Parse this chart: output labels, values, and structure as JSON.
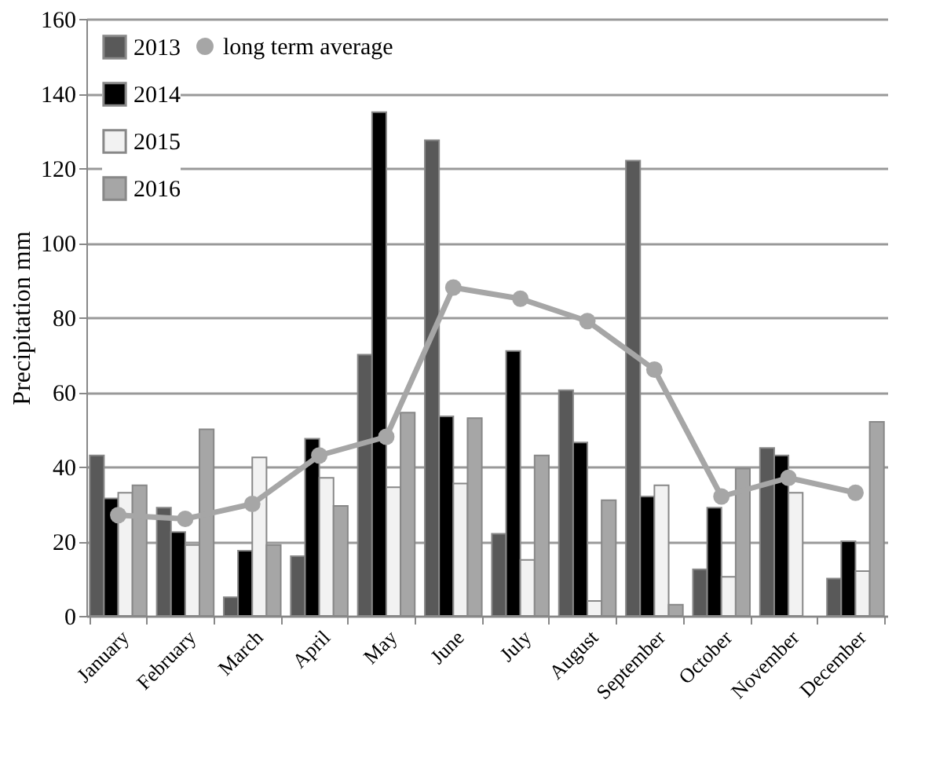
{
  "chart_data": {
    "type": "bar",
    "ylabel": "Precipitation mm",
    "categories": [
      "January",
      "February",
      "March",
      "April",
      "May",
      "June",
      "July",
      "August",
      "September",
      "October",
      "November",
      "December"
    ],
    "series": [
      {
        "name": "2013",
        "color": "#595959",
        "values": [
          43,
          29,
          5,
          16,
          70,
          127.5,
          22,
          60.5,
          122,
          12.5,
          45,
          10
        ]
      },
      {
        "name": "2014",
        "color": "#000000",
        "values": [
          31.5,
          22.5,
          17.5,
          47.5,
          135,
          53.5,
          71,
          46.5,
          32,
          29,
          43,
          20
        ]
      },
      {
        "name": "2015",
        "color": "#f2f2f2",
        "values": [
          33,
          19,
          42.5,
          37,
          34.5,
          35.5,
          15,
          4,
          35,
          10.5,
          33,
          12
        ]
      },
      {
        "name": "2016",
        "color": "#a6a6a6",
        "values": [
          35,
          50,
          19,
          29.5,
          54.5,
          53,
          43,
          31,
          3,
          39.5,
          null,
          52
        ]
      },
      {
        "name": "long term average",
        "color": "#a6a6a6",
        "type": "line",
        "marker": "circle",
        "values": [
          27,
          26,
          30,
          43,
          48,
          88,
          85,
          79,
          66,
          32,
          37,
          33
        ]
      }
    ],
    "ylim": [
      0,
      160
    ],
    "yticks": [
      0,
      20,
      40,
      60,
      80,
      100,
      120,
      140,
      160
    ],
    "grid": "y",
    "legend": "top left"
  }
}
